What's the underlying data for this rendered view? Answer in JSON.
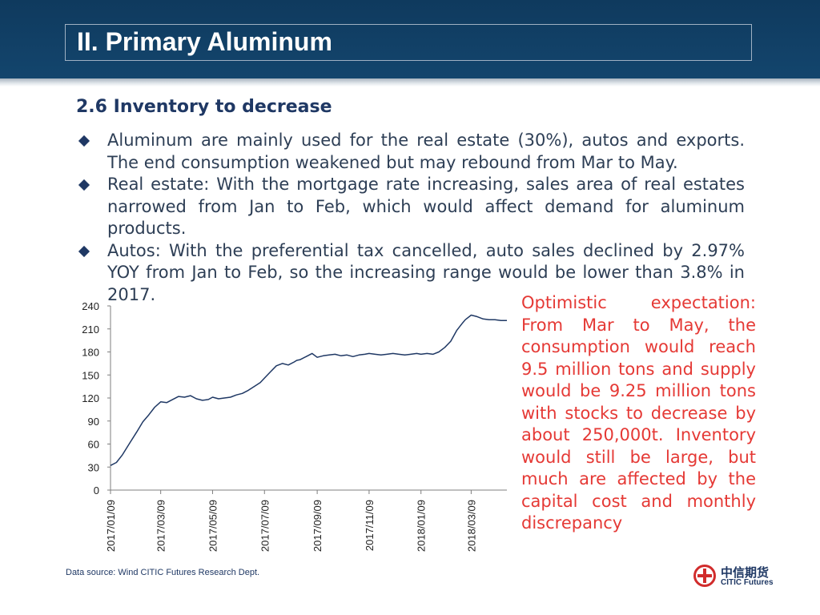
{
  "header": {
    "title": "II. Primary Aluminum"
  },
  "section": {
    "title": "2.6 Inventory to decrease"
  },
  "bullets": [
    "Aluminum are mainly used for the real estate (30%), autos and exports. The end consumption weakened but may rebound from Mar to May.",
    "Real estate: With the mortgage rate increasing, sales area of real estates narrowed from Jan to Feb, which would affect demand for aluminum products.",
    "Autos: With the preferential tax cancelled, auto sales declined by 2.97% YOY from Jan to Feb, so the increasing range would be lower than 3.8% in 2017."
  ],
  "annotation": "Optimistic expectation: From Mar to May, the consumption would reach 9.5 million tons and supply would be 9.25 million tons with stocks to decrease by about 250,000t. Inventory would still be large, but much are affected by the capital cost and monthly discrepancy",
  "source": "Data source: Wind    CITIC Futures Research Dept.",
  "logo": {
    "cn": "中信期货",
    "en": "CITIC Futures"
  },
  "colors": {
    "header_bg": "#13456d",
    "accent_red": "#e53935",
    "text_navy": "#1f3864",
    "line": "#1f3864"
  },
  "chart_data": {
    "type": "line",
    "title": "",
    "xlabel": "",
    "ylabel": "",
    "ylim": [
      0,
      240
    ],
    "yticks": [
      0,
      30,
      60,
      90,
      120,
      150,
      180,
      210,
      240
    ],
    "xticks": [
      "2017/01/09",
      "2017/03/09",
      "2017/05/09",
      "2017/07/09",
      "2017/09/09",
      "2017/11/09",
      "2018/01/09",
      "2018/03/09"
    ],
    "grid": false,
    "series": [
      {
        "name": "",
        "x": [
          "2017/01/09",
          "2017/01/16",
          "2017/01/23",
          "2017/02/01",
          "2017/02/09",
          "2017/02/16",
          "2017/02/23",
          "2017/03/02",
          "2017/03/09",
          "2017/03/16",
          "2017/03/23",
          "2017/03/30",
          "2017/04/06",
          "2017/04/13",
          "2017/04/20",
          "2017/04/27",
          "2017/05/04",
          "2017/05/09",
          "2017/05/16",
          "2017/05/23",
          "2017/05/30",
          "2017/06/06",
          "2017/06/13",
          "2017/06/20",
          "2017/06/27",
          "2017/07/04",
          "2017/07/09",
          "2017/07/16",
          "2017/07/23",
          "2017/07/30",
          "2017/08/06",
          "2017/08/13",
          "2017/08/16",
          "2017/08/20",
          "2017/08/27",
          "2017/09/03",
          "2017/09/09",
          "2017/09/16",
          "2017/09/23",
          "2017/09/30",
          "2017/10/07",
          "2017/10/14",
          "2017/10/21",
          "2017/10/28",
          "2017/11/04",
          "2017/11/09",
          "2017/11/16",
          "2017/11/23",
          "2017/11/30",
          "2017/12/07",
          "2017/12/14",
          "2017/12/21",
          "2017/12/28",
          "2018/01/04",
          "2018/01/09",
          "2018/01/16",
          "2018/01/23",
          "2018/01/30",
          "2018/02/06",
          "2018/02/13",
          "2018/02/20",
          "2018/02/27",
          "2018/03/02",
          "2018/03/09",
          "2018/03/16",
          "2018/03/23",
          "2018/03/30",
          "2018/04/06",
          "2018/04/13",
          "2018/04/20"
        ],
        "values": [
          32,
          36,
          46,
          62,
          76,
          89,
          98,
          108,
          115,
          114,
          118,
          122,
          121,
          123,
          119,
          117,
          118,
          121,
          119,
          120,
          121,
          124,
          126,
          130,
          135,
          140,
          146,
          154,
          162,
          165,
          163,
          167,
          169,
          170,
          174,
          178,
          173,
          175,
          176,
          177,
          175,
          176,
          174,
          176,
          177,
          178,
          177,
          176,
          177,
          178,
          177,
          176,
          177,
          178,
          177,
          178,
          177,
          180,
          186,
          194,
          208,
          218,
          222,
          228,
          226,
          223,
          222,
          222,
          221,
          221
        ]
      }
    ]
  }
}
